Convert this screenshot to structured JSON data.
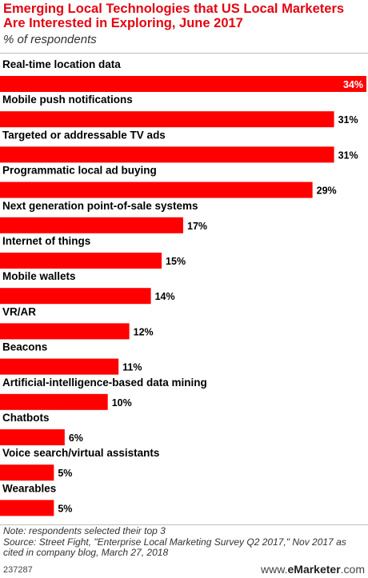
{
  "title": "Emerging Local Technologies that US Local Marketers Are Interested in Exploring, June 2017",
  "subtitle": "% of respondents",
  "chart_data": {
    "type": "bar",
    "orientation": "horizontal",
    "categories": [
      "Real-time location data",
      "Mobile push notifications",
      "Targeted or addressable TV ads",
      "Programmatic local ad buying",
      "Next generation point-of-sale systems",
      "Internet of things",
      "Mobile wallets",
      "VR/AR",
      "Beacons",
      "Artificial-intelligence-based data mining",
      "Chatbots",
      "Voice search/virtual assistants",
      "Wearables"
    ],
    "values": [
      34,
      31,
      31,
      29,
      17,
      15,
      14,
      12,
      11,
      10,
      6,
      5,
      5
    ],
    "labels": [
      "34%",
      "31%",
      "31%",
      "29%",
      "17%",
      "15%",
      "14%",
      "12%",
      "11%",
      "10%",
      "6%",
      "5%",
      "5%"
    ],
    "bar_color": "#ff0000",
    "xlim": [
      0,
      34
    ]
  },
  "note": "Note: respondents selected their top 3",
  "source": "Source: Street Fight, \"Enterprise Local Marketing Survey Q2 2017,\" Nov 2017 as cited in company blog, March 27, 2018",
  "chart_id": "237287",
  "logo": {
    "prefix": "www.",
    "brand": "eMarketer",
    "suffix": ".com"
  }
}
